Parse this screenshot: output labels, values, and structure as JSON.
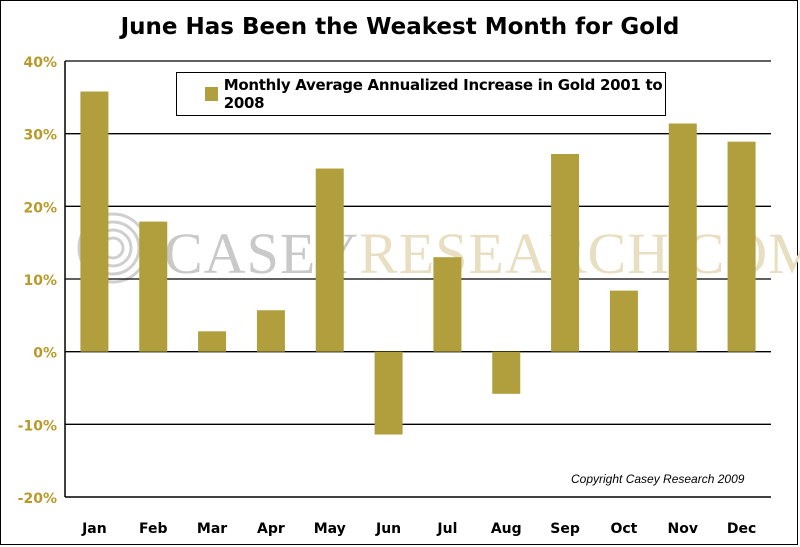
{
  "chart_data": {
    "type": "bar",
    "title": "June Has Been the Weakest Month for Gold",
    "categories": [
      "Jan",
      "Feb",
      "Mar",
      "Apr",
      "May",
      "Jun",
      "Jul",
      "Aug",
      "Sep",
      "Oct",
      "Nov",
      "Dec"
    ],
    "series": [
      {
        "name": "Monthly Average Annualized Increase in Gold 2001 to 2008",
        "values": [
          35.8,
          17.9,
          2.8,
          5.7,
          25.2,
          -11.4,
          13.0,
          -5.8,
          27.2,
          8.4,
          31.4,
          28.9
        ]
      }
    ],
    "ylim": [
      -20,
      40
    ],
    "yticks": [
      "-20%",
      "-10%",
      "0%",
      "10%",
      "20%",
      "30%",
      "40%"
    ],
    "grid": true,
    "legend_position": "top"
  },
  "colors": {
    "bar": "#b19e3d",
    "axis_labels": "#b89a2a"
  },
  "watermark": {
    "part1": "CASEY",
    "part2": "RESEARCH.COM"
  },
  "copyright": "Copyright Casey Research  2009"
}
